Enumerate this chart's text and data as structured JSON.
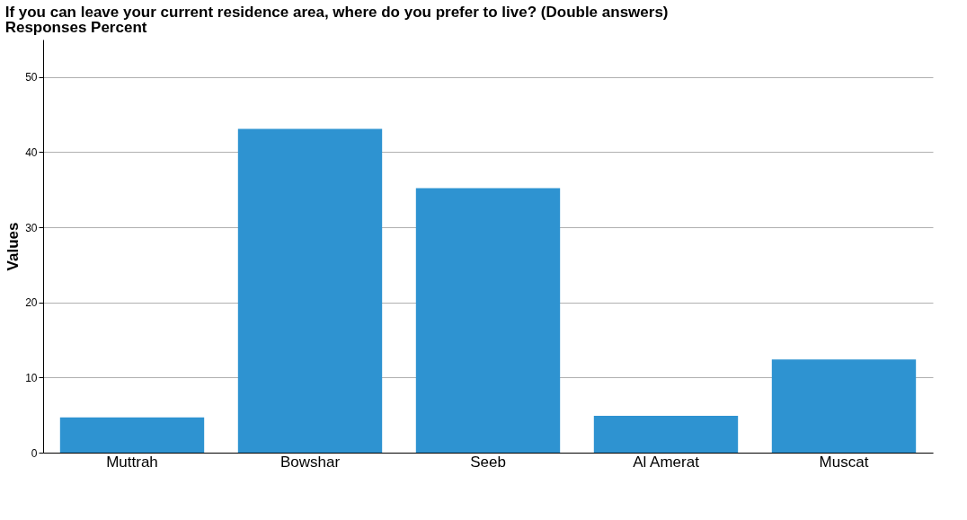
{
  "chart_data": {
    "type": "bar",
    "title": "If you can leave your current residence area, where do you prefer to live? (Double answers)",
    "subtitle": "Responses Percent",
    "ylabel": "Values",
    "categories": [
      "Muttrah",
      "Bowshar",
      "Seeb",
      "Al Amerat",
      "Muscat"
    ],
    "values": [
      4.7,
      43.1,
      35.2,
      4.9,
      12.4
    ],
    "color": "#2e93d1",
    "ylim": [
      0,
      55
    ],
    "yticks": [
      0,
      10,
      20,
      30,
      40,
      50
    ],
    "grid": "y"
  }
}
